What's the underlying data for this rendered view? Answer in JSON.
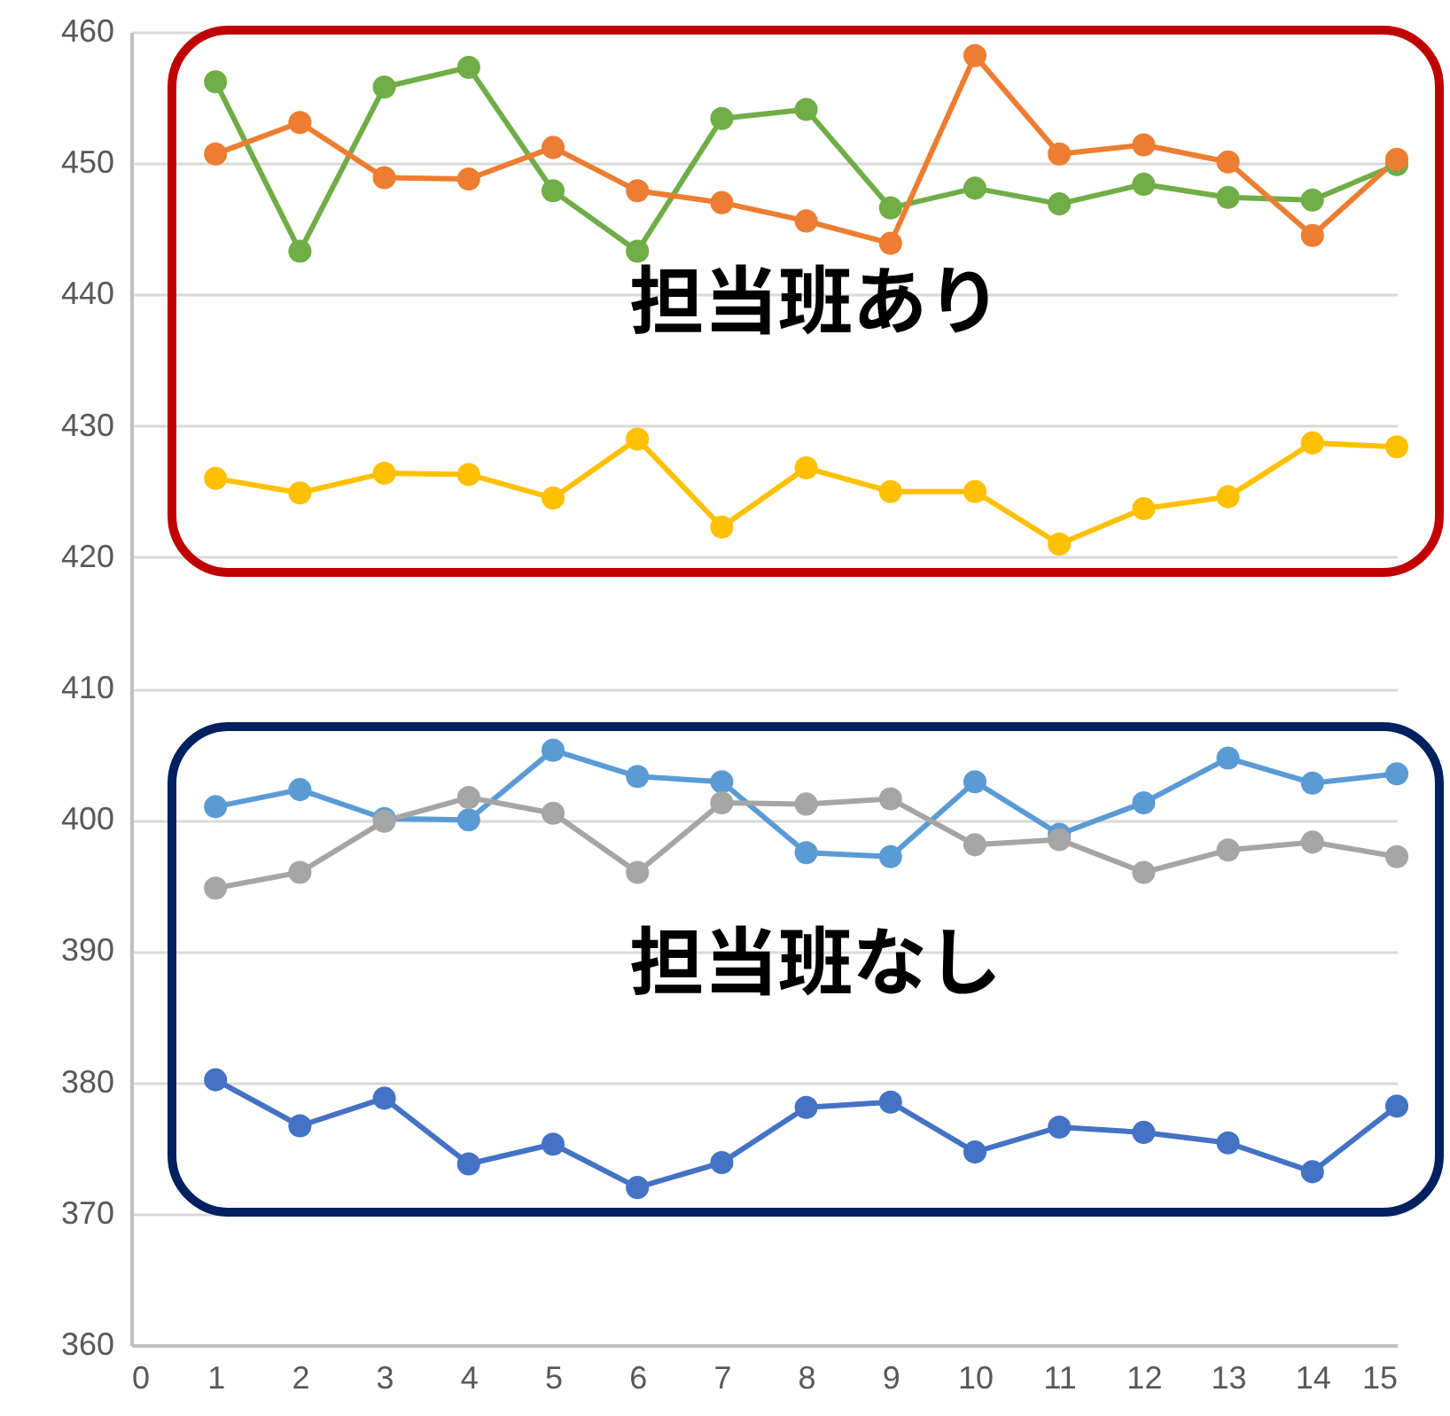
{
  "chart_data": {
    "type": "line",
    "x": [
      1,
      2,
      3,
      4,
      5,
      6,
      7,
      8,
      9,
      10,
      11,
      12,
      13,
      14,
      15
    ],
    "series": [
      {
        "color": "#70ad47",
        "values": [
          456.2,
          443.3,
          455.8,
          457.3,
          447.9,
          443.3,
          453.4,
          454.1,
          446.6,
          448.1,
          446.9,
          448.4,
          447.4,
          447.2,
          449.9
        ]
      },
      {
        "color": "#ed7d31",
        "values": [
          450.7,
          453.1,
          448.9,
          448.8,
          451.2,
          447.9,
          447.0,
          445.6,
          443.9,
          458.2,
          450.7,
          451.4,
          450.1,
          444.5,
          450.3
        ]
      },
      {
        "color": "#ffc000",
        "values": [
          426.0,
          424.9,
          426.4,
          426.3,
          424.5,
          429.0,
          422.3,
          426.8,
          425.0,
          425.0,
          421.0,
          423.7,
          424.6,
          428.7,
          428.4
        ]
      },
      {
        "color": "#5b9bd5",
        "values": [
          401.0,
          402.3,
          400.1,
          400.0,
          405.3,
          403.3,
          402.9,
          397.5,
          397.2,
          402.9,
          398.9,
          401.3,
          404.7,
          402.8,
          403.5
        ]
      },
      {
        "color": "#a5a5a5",
        "values": [
          394.8,
          396.0,
          399.9,
          401.7,
          400.5,
          396.0,
          401.3,
          401.2,
          401.6,
          398.1,
          398.5,
          396.0,
          397.7,
          398.3,
          397.2
        ]
      },
      {
        "color": "#4472c4",
        "values": [
          380.2,
          376.7,
          378.8,
          373.8,
          375.3,
          372.0,
          373.9,
          378.1,
          378.5,
          374.7,
          376.6,
          376.2,
          375.4,
          373.2,
          378.2
        ]
      }
    ],
    "xlim": [
      0,
      15
    ],
    "xticks": [
      0,
      1,
      2,
      3,
      4,
      5,
      6,
      7,
      8,
      9,
      10,
      11,
      12,
      13,
      14,
      15
    ],
    "ylim": [
      360,
      460
    ],
    "yticks": [
      360,
      370,
      380,
      390,
      400,
      410,
      420,
      430,
      440,
      450,
      460
    ],
    "grid": "y",
    "marker": "circle",
    "line_style": "solid",
    "annotations": [
      "担当班あり",
      "担当班なし"
    ]
  }
}
